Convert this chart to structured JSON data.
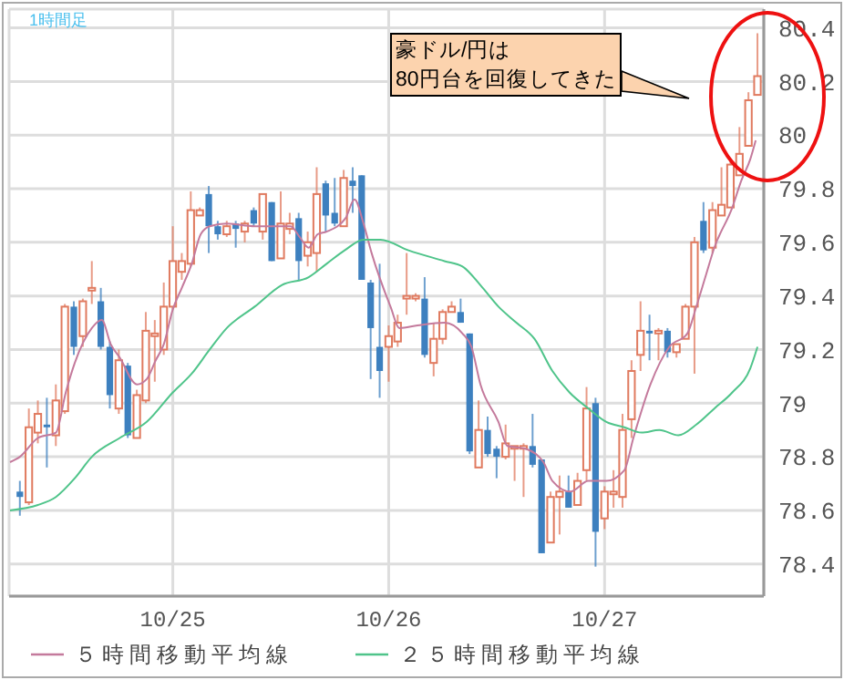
{
  "chart_data": {
    "type": "candlestick",
    "x": [
      "--10-24T07:00",
      "--10-24T08:00",
      "--10-24T09:00",
      "--10-24T10:00",
      "--10-24T11:00",
      "--10-24T12:00",
      "--10-24T13:00",
      "--10-24T14:00",
      "--10-24T15:00",
      "--10-24T16:00",
      "--10-24T17:00",
      "--10-24T18:00",
      "--10-24T19:00",
      "--10-24T20:00",
      "--10-24T21:00",
      "--10-24T22:00",
      "--10-24T23:00",
      "--10-25T00:00",
      "--10-25T01:00",
      "--10-25T02:00",
      "--10-25T03:00",
      "--10-25T04:00",
      "--10-25T05:00",
      "--10-25T06:00",
      "--10-25T07:00",
      "--10-25T08:00",
      "--10-25T09:00",
      "--10-25T10:00",
      "--10-25T11:00",
      "--10-25T12:00",
      "--10-25T13:00",
      "--10-25T14:00",
      "--10-25T15:00",
      "--10-25T16:00",
      "--10-25T17:00",
      "--10-25T18:00",
      "--10-25T19:00",
      "--10-25T20:00",
      "--10-25T21:00",
      "--10-25T22:00",
      "--10-25T23:00",
      "--10-26T00:00",
      "--10-26T01:00",
      "--10-26T02:00",
      "--10-26T03:00",
      "--10-26T04:00",
      "--10-26T05:00",
      "--10-26T06:00",
      "--10-26T07:00",
      "--10-26T08:00",
      "--10-26T09:00",
      "--10-26T10:00",
      "--10-26T11:00",
      "--10-26T12:00",
      "--10-26T13:00",
      "--10-26T14:00",
      "--10-26T15:00",
      "--10-26T16:00",
      "--10-26T17:00",
      "--10-26T18:00",
      "--10-26T19:00",
      "--10-26T20:00",
      "--10-26T21:00",
      "--10-26T22:00",
      "--10-26T23:00",
      "--10-27T00:00",
      "--10-27T01:00",
      "--10-27T02:00",
      "--10-27T03:00",
      "--10-27T04:00",
      "--10-27T05:00",
      "--10-27T06:00",
      "--10-27T07:00",
      "--10-27T08:00",
      "--10-27T09:00",
      "--10-27T10:00",
      "--10-27T11:00",
      "--10-27T12:00",
      "--10-27T13:00",
      "--10-27T14:00",
      "--10-27T15:00",
      "--10-27T16:00",
      "--10-27T17:00"
    ],
    "ohlc": [
      [
        78.67,
        78.71,
        78.58,
        78.65
      ],
      [
        78.63,
        78.98,
        78.62,
        78.91
      ],
      [
        78.89,
        79.01,
        78.85,
        78.96
      ],
      [
        78.92,
        79.02,
        78.76,
        78.91
      ],
      [
        78.88,
        79.07,
        78.84,
        79.01
      ],
      [
        78.97,
        79.37,
        78.96,
        79.36
      ],
      [
        79.36,
        79.38,
        79.18,
        79.21
      ],
      [
        79.25,
        79.39,
        79.21,
        79.38
      ],
      [
        79.42,
        79.53,
        79.37,
        79.43
      ],
      [
        79.38,
        79.43,
        79.2,
        79.21
      ],
      [
        79.21,
        79.23,
        78.98,
        79.03
      ],
      [
        78.98,
        79.2,
        78.96,
        79.16
      ],
      [
        79.14,
        79.15,
        78.87,
        78.88
      ],
      [
        78.87,
        79.05,
        78.87,
        79.03
      ],
      [
        79.01,
        79.34,
        79.0,
        79.27
      ],
      [
        79.25,
        79.31,
        79.08,
        79.26
      ],
      [
        79.2,
        79.45,
        79.18,
        79.36
      ],
      [
        79.36,
        79.66,
        79.35,
        79.53
      ],
      [
        79.49,
        79.56,
        79.46,
        79.53
      ],
      [
        79.52,
        79.79,
        79.51,
        79.72
      ],
      [
        79.7,
        79.73,
        79.7,
        79.72
      ],
      [
        79.78,
        79.81,
        79.56,
        79.66
      ],
      [
        79.66,
        79.68,
        79.61,
        79.63
      ],
      [
        79.63,
        79.68,
        79.62,
        79.66
      ],
      [
        79.67,
        79.68,
        79.58,
        79.65
      ],
      [
        79.64,
        79.68,
        79.6,
        79.67
      ],
      [
        79.72,
        79.73,
        79.66,
        79.67
      ],
      [
        79.64,
        79.78,
        79.61,
        79.78
      ],
      [
        79.75,
        79.75,
        79.53,
        79.53
      ],
      [
        79.54,
        79.79,
        79.54,
        79.67
      ],
      [
        79.65,
        79.71,
        79.63,
        79.67
      ],
      [
        79.69,
        79.71,
        79.46,
        79.53
      ],
      [
        79.55,
        79.64,
        79.51,
        79.6
      ],
      [
        79.56,
        79.88,
        79.49,
        79.78
      ],
      [
        79.82,
        79.83,
        79.64,
        79.7
      ],
      [
        79.71,
        79.84,
        79.66,
        79.67
      ],
      [
        79.66,
        79.87,
        79.66,
        79.84
      ],
      [
        79.83,
        79.88,
        79.71,
        79.81
      ],
      [
        79.85,
        79.85,
        79.46,
        79.46
      ],
      [
        79.45,
        79.46,
        79.09,
        79.28
      ],
      [
        79.21,
        79.52,
        79.02,
        79.12
      ],
      [
        79.21,
        79.29,
        79.08,
        79.25
      ],
      [
        79.23,
        79.33,
        79.21,
        79.3
      ],
      [
        79.39,
        79.56,
        79.33,
        79.4
      ],
      [
        79.39,
        79.41,
        79.38,
        79.4
      ],
      [
        79.39,
        79.47,
        79.17,
        79.18
      ],
      [
        79.15,
        79.3,
        79.1,
        79.24
      ],
      [
        79.24,
        79.35,
        79.22,
        79.34
      ],
      [
        79.34,
        79.38,
        79.34,
        79.36
      ],
      [
        79.34,
        79.39,
        79.3,
        79.3
      ],
      [
        79.26,
        79.26,
        78.81,
        78.82
      ],
      [
        78.76,
        79.01,
        78.76,
        78.9
      ],
      [
        78.9,
        78.95,
        78.8,
        78.81
      ],
      [
        78.83,
        78.84,
        78.72,
        78.8
      ],
      [
        78.8,
        78.92,
        78.79,
        78.85
      ],
      [
        78.83,
        78.84,
        78.71,
        78.84
      ],
      [
        78.83,
        78.85,
        78.65,
        78.84
      ],
      [
        78.84,
        78.96,
        78.76,
        78.77
      ],
      [
        78.79,
        78.79,
        78.44,
        78.44
      ],
      [
        78.48,
        78.67,
        78.48,
        78.65
      ],
      [
        78.65,
        78.73,
        78.51,
        78.67
      ],
      [
        78.67,
        78.73,
        78.61,
        78.61
      ],
      [
        78.62,
        78.74,
        78.62,
        78.71
      ],
      [
        78.75,
        79.06,
        78.71,
        78.98
      ],
      [
        79.0,
        79.02,
        78.39,
        78.52
      ],
      [
        78.57,
        78.69,
        78.53,
        78.67
      ],
      [
        78.66,
        78.75,
        78.61,
        78.67
      ],
      [
        78.65,
        78.96,
        78.61,
        78.9
      ],
      [
        78.94,
        79.16,
        78.87,
        79.12
      ],
      [
        79.18,
        79.38,
        79.12,
        79.27
      ],
      [
        79.27,
        79.33,
        79.16,
        79.26
      ],
      [
        79.26,
        79.28,
        79.16,
        79.27
      ],
      [
        79.27,
        79.28,
        79.17,
        79.19
      ],
      [
        79.19,
        79.22,
        79.17,
        79.22
      ],
      [
        79.24,
        79.37,
        79.24,
        79.36
      ],
      [
        79.36,
        79.62,
        79.11,
        79.6
      ],
      [
        79.68,
        79.75,
        79.56,
        79.57
      ],
      [
        79.58,
        79.75,
        79.56,
        79.72
      ],
      [
        79.7,
        79.88,
        79.7,
        79.74
      ],
      [
        79.73,
        79.91,
        79.73,
        79.89
      ],
      [
        79.85,
        80.03,
        79.85,
        79.93
      ],
      [
        79.96,
        80.16,
        79.96,
        80.13
      ],
      [
        80.15,
        80.38,
        80.15,
        80.22
      ]
    ],
    "colors": [
      "#3d80bf",
      "#e07a5f",
      "#e07a5f",
      "#3d80bf",
      "#e07a5f",
      "#e07a5f",
      "#3d80bf",
      "#e07a5f",
      "#e07a5f",
      "#3d80bf",
      "#3d80bf",
      "#e07a5f",
      "#3d80bf",
      "#e07a5f",
      "#e07a5f",
      "#e07a5f",
      "#e07a5f",
      "#e07a5f",
      "#e07a5f",
      "#e07a5f",
      "#e07a5f",
      "#3d80bf",
      "#3d80bf",
      "#e07a5f",
      "#3d80bf",
      "#e07a5f",
      "#3d80bf",
      "#e07a5f",
      "#3d80bf",
      "#e07a5f",
      "#e07a5f",
      "#3d80bf",
      "#e07a5f",
      "#e07a5f",
      "#3d80bf",
      "#3d80bf",
      "#e07a5f",
      "#3d80bf",
      "#3d80bf",
      "#3d80bf",
      "#3d80bf",
      "#e07a5f",
      "#e07a5f",
      "#e07a5f",
      "#e07a5f",
      "#3d80bf",
      "#e07a5f",
      "#e07a5f",
      "#e07a5f",
      "#3d80bf",
      "#3d80bf",
      "#e07a5f",
      "#3d80bf",
      "#3d80bf",
      "#e07a5f",
      "#e07a5f",
      "#e07a5f",
      "#3d80bf",
      "#3d80bf",
      "#e07a5f",
      "#e07a5f",
      "#3d80bf",
      "#e07a5f",
      "#e07a5f",
      "#3d80bf",
      "#e07a5f",
      "#e07a5f",
      "#e07a5f",
      "#e07a5f",
      "#e07a5f",
      "#3d80bf",
      "#e07a5f",
      "#3d80bf",
      "#e07a5f",
      "#e07a5f",
      "#e07a5f",
      "#3d80bf",
      "#e07a5f",
      "#e07a5f",
      "#e07a5f",
      "#e07a5f",
      "#e07a5f",
      "#e07a5f"
    ],
    "series": [
      {
        "type": "line",
        "name": "５時間移動平均線",
        "color": "#c47a9c",
        "x": [
          "--10-24T05:54",
          "--10-24T07:00",
          "--10-24T09:00",
          "--10-24T11:00",
          "--10-24T12:06",
          "--10-24T13:06",
          "--10-24T15:00",
          "--10-24T16:06",
          "--10-24T17:06",
          "--10-24T18:06",
          "--10-24T20:00",
          "--10-24T21:06",
          "--10-24T22:06",
          "--10-24T23:00",
          "--10-25T00:00",
          "--10-25T01:00",
          "--10-25T02:06",
          "--10-25T03:06",
          "--10-25T04:06",
          "--10-25T06:00",
          "--10-25T09:06",
          "--10-25T11:06",
          "--10-25T13:06",
          "--10-25T14:06",
          "--10-25T15:06",
          "--10-25T16:06",
          "--10-25T17:06",
          "--10-25T19:12",
          "--10-25T20:12",
          "--10-25T21:12",
          "--10-25T22:06",
          "--10-26T00:12",
          "--10-26T01:12",
          "--10-26T03:12",
          "--10-26T06:12",
          "--10-26T08:12",
          "--10-26T09:12",
          "--10-26T10:12",
          "--10-26T12:12",
          "--10-26T13:12",
          "--10-26T15:12",
          "--10-26T17:12",
          "--10-26T18:12",
          "--10-26T20:12",
          "--10-26T22:12",
          "--10-27T00:12",
          "--10-27T02:12",
          "--10-27T03:12",
          "--10-27T05:06",
          "--10-27T07:12",
          "--10-27T09:12",
          "--10-27T10:12",
          "--10-27T11:12",
          "--10-27T12:12",
          "--10-27T14:12",
          "--10-27T15:12",
          "--10-27T16:12",
          "--10-27T16:48"
        ],
        "values": [
          78.78,
          78.8,
          78.87,
          78.89,
          79.04,
          79.15,
          79.28,
          79.31,
          79.22,
          79.17,
          79.07,
          79.09,
          79.16,
          79.22,
          79.35,
          79.43,
          79.52,
          79.63,
          79.66,
          79.67,
          79.66,
          79.66,
          79.66,
          79.62,
          79.58,
          79.63,
          79.64,
          79.69,
          79.76,
          79.67,
          79.56,
          79.36,
          79.28,
          79.29,
          79.3,
          79.26,
          79.21,
          79.07,
          78.93,
          78.84,
          78.83,
          78.78,
          78.71,
          78.67,
          78.71,
          78.71,
          78.75,
          78.87,
          79.07,
          79.21,
          79.26,
          79.36,
          79.47,
          79.58,
          79.73,
          79.83,
          79.91,
          79.98
        ]
      },
      {
        "type": "line",
        "name": "２５時間移動平均線",
        "color": "#4fc48a",
        "x": [
          "--10-24T05:54",
          "--10-24T09:00",
          "--10-24T11:00",
          "--10-24T13:06",
          "--10-24T15:00",
          "--10-24T18:06",
          "--10-24T21:06",
          "--10-25T00:00",
          "--10-25T02:06",
          "--10-25T04:06",
          "--10-25T06:00",
          "--10-25T09:06",
          "--10-25T12:06",
          "--10-25T15:06",
          "--10-25T17:06",
          "--10-25T19:06",
          "--10-25T21:12",
          "--10-25T23:06",
          "--10-26T02:12",
          "--10-26T06:12",
          "--10-26T08:12",
          "--10-26T10:12",
          "--10-26T12:12",
          "--10-26T14:12",
          "--10-26T16:12",
          "--10-26T18:12",
          "--10-26T20:06",
          "--10-26T22:12",
          "--10-27T00:12",
          "--10-27T02:12",
          "--10-27T04:06",
          "--10-27T06:06",
          "--10-27T08:12",
          "--10-27T10:12",
          "--10-27T12:12",
          "--10-27T14:12",
          "--10-27T16:12",
          "--10-27T17:00"
        ],
        "values": [
          78.6,
          78.62,
          78.65,
          78.72,
          78.8,
          78.87,
          78.93,
          79.04,
          79.11,
          79.2,
          79.28,
          79.36,
          79.44,
          79.47,
          79.52,
          79.57,
          79.61,
          79.61,
          79.57,
          79.53,
          79.51,
          79.44,
          79.36,
          79.3,
          79.24,
          79.12,
          79.04,
          78.98,
          78.93,
          78.91,
          78.89,
          78.9,
          78.88,
          78.92,
          78.98,
          79.04,
          79.13,
          79.21
        ]
      }
    ],
    "xlim": [
      "--10-24T05:48",
      "--10-27T17:42"
    ],
    "xticks": [
      {
        "value": "--10-25",
        "label": "10/25"
      },
      {
        "value": "--10-26",
        "label": "10/26"
      },
      {
        "value": "--10-27",
        "label": "10/27"
      }
    ],
    "ylim": [
      78.28,
      80.47
    ],
    "yticks": [
      78.4,
      78.6,
      78.8,
      79,
      79.2,
      79.4,
      79.6,
      79.8,
      80,
      80.2,
      80.4
    ],
    "grid": true,
    "legend": "bottom",
    "annotations": [
      "1時間足",
      "豪ドル/円は\n80円台を回復してきた"
    ]
  }
}
